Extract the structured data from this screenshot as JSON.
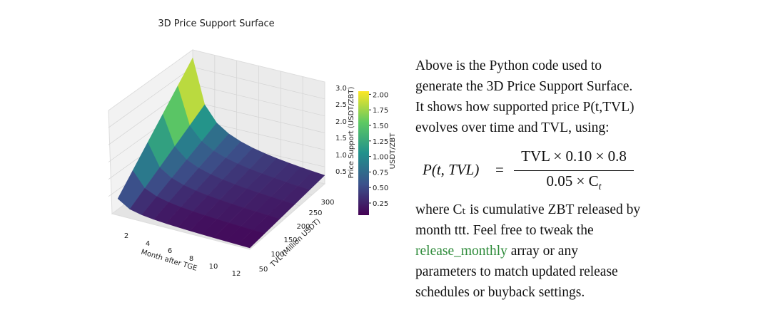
{
  "figure": {
    "title": "3D Price Support Surface",
    "x_label": "Month after TGE",
    "x_ticks": [
      "2",
      "4",
      "6",
      "8",
      "10",
      "12"
    ],
    "y_label": "TVL (Million USDT)",
    "y_ticks": [
      "50",
      "100",
      "150",
      "200",
      "250",
      "300"
    ],
    "z_label": "Price Support (USDT/ZBT)",
    "z_ticks": [
      "0.5",
      "1.0",
      "1.5",
      "2.0",
      "2.5",
      "3.0"
    ],
    "colorbar_label": "USDT/ZBT",
    "colorbar_ticks": [
      "0.25",
      "0.50",
      "0.75",
      "1.00",
      "1.25",
      "1.50",
      "1.75",
      "2.00"
    ]
  },
  "text": {
    "paragraph_1": [
      "Above is the Python code used to",
      "generate the 3D Price Support Surface.",
      "It shows how supported price P(t,TVL)",
      "evolves over time and TVL, using:"
    ],
    "formula": {
      "lhs": "P(t, TVL)",
      "equals": "=",
      "numerator": "TVL × 0.10 × 0.8",
      "denominator": "0.05 × C",
      "denominator_sub": "t"
    },
    "paragraph_2": {
      "line_1": "where Cₜ is cumulative ZBT released by",
      "line_2": "month ttt. Feel free to tweak the",
      "code": "release_monthly",
      "line_3_rest": " array or any",
      "line_4": "parameters to match updated release",
      "line_5": "schedules or buyback settings."
    }
  }
}
